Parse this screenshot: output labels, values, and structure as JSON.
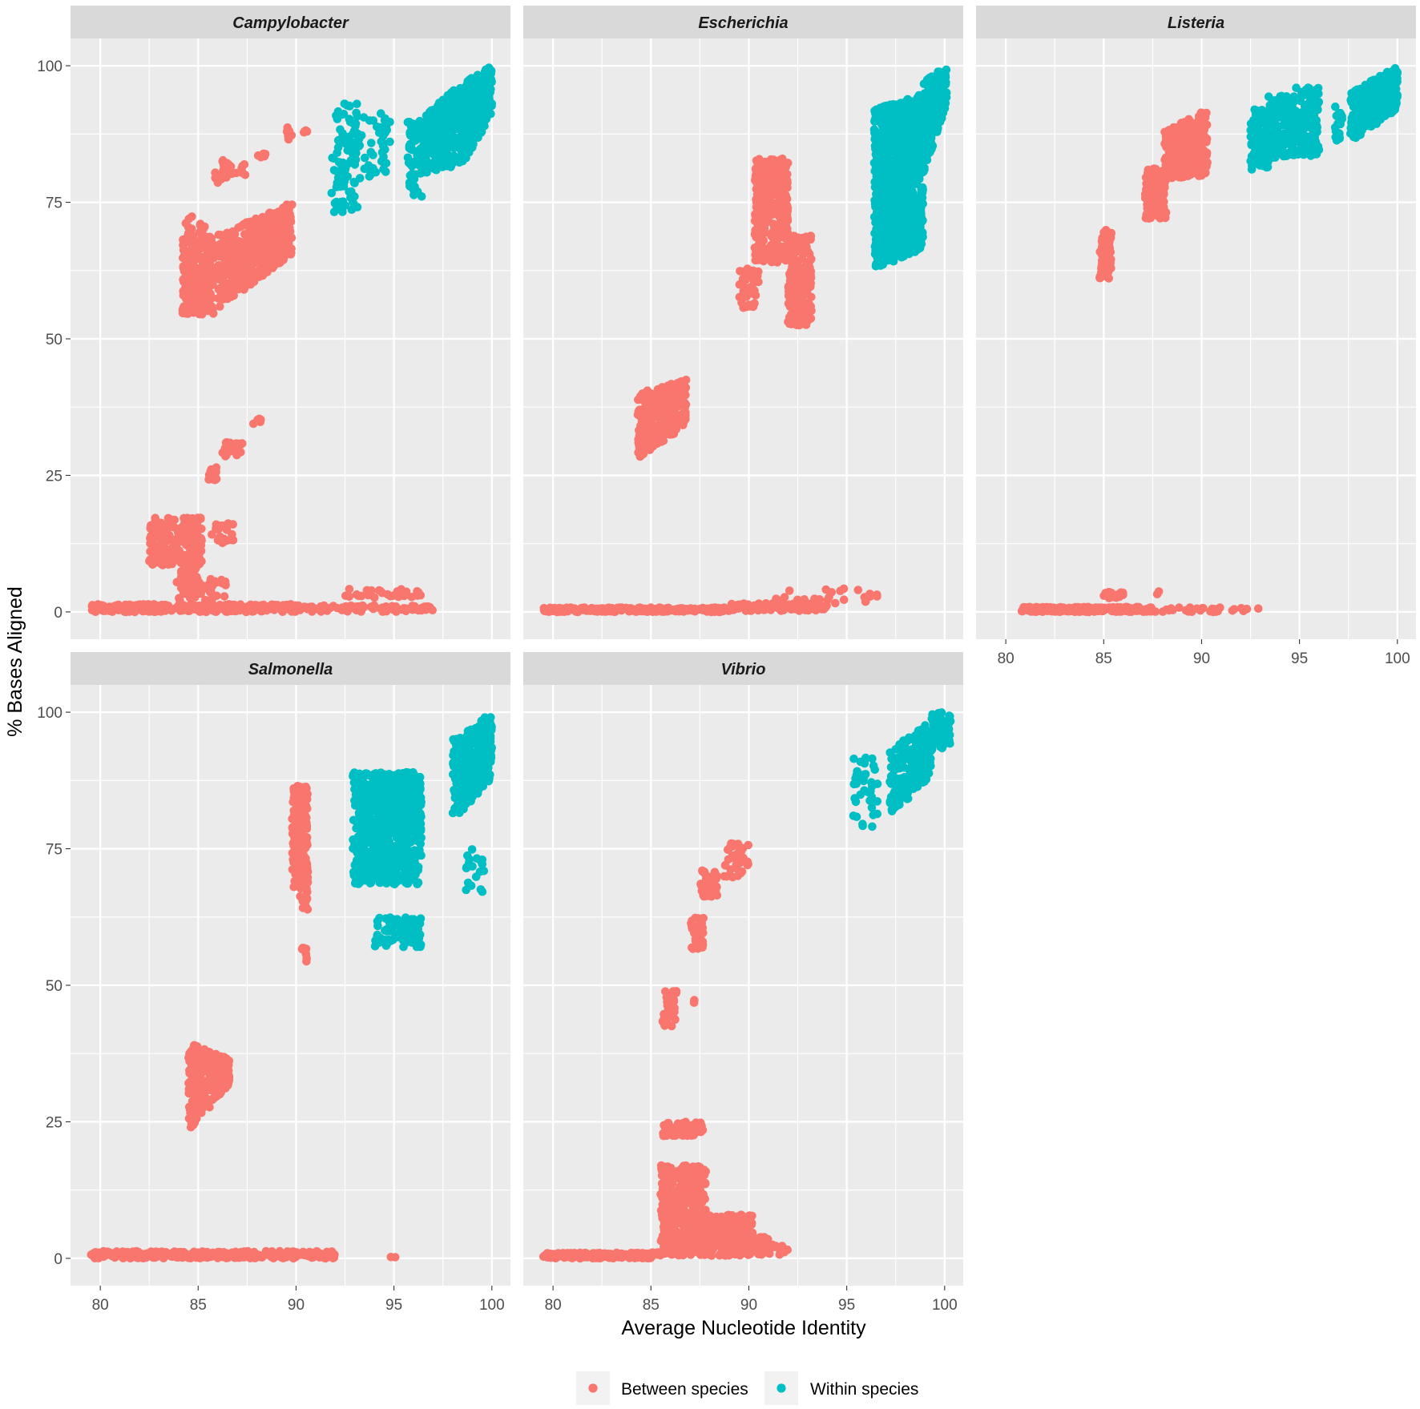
{
  "chart_data": {
    "type": "scatter",
    "xlabel": "Average Nucleotide Identity",
    "ylabel": "% Bases Aligned",
    "xlim": [
      78.48,
      100.95
    ],
    "ylim": [
      -5,
      105
    ],
    "x_ticks": [
      80,
      85,
      90,
      95,
      100
    ],
    "y_ticks": [
      0,
      25,
      50,
      75,
      100
    ],
    "x_tick_labels": [
      "80",
      "85",
      "90",
      "95",
      "100"
    ],
    "y_tick_labels": [
      "0",
      "25",
      "50",
      "75",
      "100"
    ],
    "grid": true,
    "legend": "bottom",
    "series": [
      {
        "name": "Between species",
        "color": "#F8766D"
      },
      {
        "name": "Within species",
        "color": "#00BFC4"
      }
    ],
    "facets": [
      {
        "title": "Campylobacter",
        "clusters": [
          {
            "s": 0,
            "x": [
              79.5,
              90.5
            ],
            "y": [
              0,
              1.4
            ],
            "n": 320
          },
          {
            "s": 0,
            "x": [
              90.5,
              97
            ],
            "y": [
              0,
              1.2
            ],
            "n": 70
          },
          {
            "s": 0,
            "x": [
              92.3,
              96.6
            ],
            "y": [
              2.6,
              4.2
            ],
            "n": 30
          },
          {
            "s": 0,
            "x": [
              83.8,
              86.5
            ],
            "y": [
              1.8,
              6
            ],
            "n": 45
          },
          {
            "s": 0,
            "x": [
              82.5,
              85.2
            ],
            "y": [
              8.5,
              17.3
            ],
            "n": 230
          },
          {
            "s": 0,
            "x": [
              84.1,
              85
            ],
            "y": [
              4,
              9
            ],
            "n": 40
          },
          {
            "s": 0,
            "x": [
              85.6,
              86.8
            ],
            "y": [
              12.5,
              16.4
            ],
            "n": 25
          },
          {
            "s": 0,
            "x": [
              85.4,
              86
            ],
            "y": [
              24,
              26.5
            ],
            "n": 10
          },
          {
            "s": 0,
            "x": [
              86.2,
              87.3
            ],
            "y": [
              28.5,
              31.2
            ],
            "n": 25
          },
          {
            "s": 0,
            "x": [
              87.8,
              88.2
            ],
            "y": [
              34.2,
              35.5
            ],
            "n": 8
          },
          {
            "s": 0,
            "x": [
              84.2,
              85.8
            ],
            "y": [
              54.5,
              69
            ],
            "n": 250
          },
          {
            "s": 0,
            "x": [
              86,
              89.8
            ],
            "y": [
              55.5,
              69
            ],
            "y_end": [
              65.5,
              75
            ],
            "n": 420
          },
          {
            "s": 0,
            "x": [
              84.3,
              85.4
            ],
            "y": [
              69,
              72.5
            ],
            "n": 12
          },
          {
            "s": 0,
            "x": [
              85.8,
              86.8
            ],
            "y": [
              78,
              83
            ],
            "n": 20
          },
          {
            "s": 0,
            "x": [
              86.8,
              87.4
            ],
            "y": [
              80,
              82
            ],
            "n": 8
          },
          {
            "s": 0,
            "x": [
              88,
              88.5
            ],
            "y": [
              83,
              84.5
            ],
            "n": 6
          },
          {
            "s": 0,
            "x": [
              89.5,
              89.8
            ],
            "y": [
              85.5,
              89
            ],
            "n": 6
          },
          {
            "s": 0,
            "x": [
              90.3,
              90.7
            ],
            "y": [
              87.6,
              88.5
            ],
            "n": 4
          },
          {
            "s": 1,
            "x": [
              91.8,
              93.2
            ],
            "y": [
              73,
              93.5
            ],
            "n": 90
          },
          {
            "s": 1,
            "x": [
              93.2,
              94.8
            ],
            "y": [
              79,
              91.5
            ],
            "n": 45
          },
          {
            "s": 1,
            "x": [
              95.7,
              96.5
            ],
            "y": [
              76,
              90
            ],
            "n": 70
          },
          {
            "s": 1,
            "x": [
              96.3,
              98.5
            ],
            "y": [
              80,
              90
            ],
            "y_end": [
              82,
              97
            ],
            "n": 350
          },
          {
            "s": 1,
            "x": [
              98.5,
              100
            ],
            "y": [
              82,
              97
            ],
            "y_end": [
              91,
              100
            ],
            "n": 260
          }
        ]
      },
      {
        "title": "Escherichia",
        "clusters": [
          {
            "s": 0,
            "x": [
              79.5,
              89
            ],
            "y": [
              0,
              0.8
            ],
            "n": 260
          },
          {
            "s": 0,
            "x": [
              89,
              94
            ],
            "y": [
              0.2,
              1.6
            ],
            "n": 110
          },
          {
            "s": 0,
            "x": [
              89.6,
              97
            ],
            "y": [
              1.3,
              4.3
            ],
            "n": 25
          },
          {
            "s": 0,
            "x": [
              84.3,
              86.8
            ],
            "y": [
              28,
              40
            ],
            "y_end": [
              34,
              42.5
            ],
            "n": 330
          },
          {
            "s": 0,
            "x": [
              89.5,
              90.5
            ],
            "y": [
              55.5,
              63
            ],
            "n": 40
          },
          {
            "s": 0,
            "x": [
              90.3,
              92
            ],
            "y": [
              64,
              83
            ],
            "n": 320
          },
          {
            "s": 0,
            "x": [
              92,
              93.2
            ],
            "y": [
              52.5,
              69
            ],
            "n": 190
          },
          {
            "s": 1,
            "x": [
              96.4,
              98.9
            ],
            "y": [
              63,
              92
            ],
            "y_end": [
              66,
              95
            ],
            "n": 900
          },
          {
            "s": 1,
            "x": [
              98.9,
              100.1
            ],
            "y": [
              80,
              97
            ],
            "y_end": [
              93,
              100
            ],
            "n": 200
          }
        ]
      },
      {
        "title": "Listeria",
        "clusters": [
          {
            "s": 0,
            "x": [
              80.8,
              87.5
            ],
            "y": [
              0,
              0.9
            ],
            "n": 260
          },
          {
            "s": 0,
            "x": [
              87.5,
              93
            ],
            "y": [
              0,
              0.8
            ],
            "n": 30
          },
          {
            "s": 0,
            "x": [
              85,
              86
            ],
            "y": [
              2.5,
              3.8
            ],
            "n": 20
          },
          {
            "s": 0,
            "x": [
              87.7,
              87.9
            ],
            "y": [
              3.2,
              4
            ],
            "n": 2
          },
          {
            "s": 0,
            "x": [
              84.8,
              85.4
            ],
            "y": [
              61,
              70
            ],
            "n": 80
          },
          {
            "s": 0,
            "x": [
              87.1,
              88.2
            ],
            "y": [
              72,
              81.5
            ],
            "n": 100
          },
          {
            "s": 0,
            "x": [
              88.1,
              90.3
            ],
            "y": [
              79,
              88
            ],
            "y_end": [
              80,
              92
            ],
            "n": 360
          },
          {
            "s": 1,
            "x": [
              92.5,
              93.4
            ],
            "y": [
              81,
              92
            ],
            "n": 100
          },
          {
            "s": 1,
            "x": [
              93.4,
              94.6
            ],
            "y": [
              83,
              94.5
            ],
            "n": 120
          },
          {
            "s": 1,
            "x": [
              94.6,
              96
            ],
            "y": [
              83.5,
              96
            ],
            "n": 190
          },
          {
            "s": 1,
            "x": [
              96.8,
              97.2
            ],
            "y": [
              86,
              92.5
            ],
            "n": 20
          },
          {
            "s": 1,
            "x": [
              97.6,
              100
            ],
            "y": [
              86,
              95
            ],
            "y_end": [
              92,
              100
            ],
            "n": 340
          }
        ]
      },
      {
        "title": "Salmonella",
        "clusters": [
          {
            "s": 0,
            "x": [
              79.5,
              92
            ],
            "y": [
              0,
              1.3
            ],
            "n": 360
          },
          {
            "s": 0,
            "x": [
              94.8,
              95.1
            ],
            "y": [
              0,
              0.5
            ],
            "n": 2
          },
          {
            "s": 0,
            "x": [
              84.5,
              86.6
            ],
            "y": [
              23,
              39.5
            ],
            "y_end": [
              32,
              36.5
            ],
            "n": 280
          },
          {
            "s": 0,
            "x": [
              89.8,
              90.6
            ],
            "y": [
              68,
              86.5
            ],
            "n": 200
          },
          {
            "s": 0,
            "x": [
              90.2,
              90.6
            ],
            "y": [
              63.5,
              72
            ],
            "n": 30
          },
          {
            "s": 0,
            "x": [
              90.3,
              90.6
            ],
            "y": [
              54,
              57
            ],
            "n": 8
          },
          {
            "s": 1,
            "x": [
              92.9,
              96.4
            ],
            "y": [
              68.5,
              89
            ],
            "n": 750
          },
          {
            "s": 1,
            "x": [
              94,
              96.4
            ],
            "y": [
              57,
              62.5
            ],
            "n": 90
          },
          {
            "s": 1,
            "x": [
              98,
              100
            ],
            "y": [
              80,
              95
            ],
            "y_end": [
              88,
              100
            ],
            "n": 320
          },
          {
            "s": 1,
            "x": [
              98.6,
              99.6
            ],
            "y": [
              67,
              75
            ],
            "n": 20
          }
        ]
      },
      {
        "title": "Vibrio",
        "clusters": [
          {
            "s": 0,
            "x": [
              79.5,
              85
            ],
            "y": [
              0,
              1
            ],
            "n": 200
          },
          {
            "s": 0,
            "x": [
              85,
              86.5
            ],
            "y": [
              0.5,
              1.2
            ],
            "n": 20
          },
          {
            "s": 0,
            "x": [
              85.5,
              87.8
            ],
            "y": [
              0.5,
              17
            ],
            "n": 480
          },
          {
            "s": 0,
            "x": [
              87.5,
              90.2
            ],
            "y": [
              0.5,
              8
            ],
            "n": 300
          },
          {
            "s": 0,
            "x": [
              87.8,
              92
            ],
            "y": [
              0.5,
              2.5
            ],
            "n": 50
          },
          {
            "s": 0,
            "x": [
              90,
              91
            ],
            "y": [
              2.5,
              4
            ],
            "n": 15
          },
          {
            "s": 0,
            "x": [
              85.6,
              87.7
            ],
            "y": [
              22.3,
              25
            ],
            "n": 70
          },
          {
            "s": 0,
            "x": [
              85.6,
              86.3
            ],
            "y": [
              42.5,
              49
            ],
            "n": 30
          },
          {
            "s": 0,
            "x": [
              87.2,
              87.4
            ],
            "y": [
              46.5,
              47.5
            ],
            "n": 2
          },
          {
            "s": 0,
            "x": [
              87,
              87.7
            ],
            "y": [
              56.5,
              62.5
            ],
            "n": 40
          },
          {
            "s": 0,
            "x": [
              87.5,
              88.4
            ],
            "y": [
              66,
              71
            ],
            "n": 50
          },
          {
            "s": 0,
            "x": [
              88.7,
              90
            ],
            "y": [
              69.5,
              76
            ],
            "n": 40
          },
          {
            "s": 1,
            "x": [
              95.2,
              96.6
            ],
            "y": [
              79,
              92
            ],
            "n": 40
          },
          {
            "s": 1,
            "x": [
              97.2,
              99.3
            ],
            "y": [
              81,
              93
            ],
            "y_end": [
              88,
              98.5
            ],
            "n": 200
          },
          {
            "s": 1,
            "x": [
              99.3,
              100.3
            ],
            "y": [
              93,
              100
            ],
            "n": 60
          }
        ]
      }
    ]
  }
}
